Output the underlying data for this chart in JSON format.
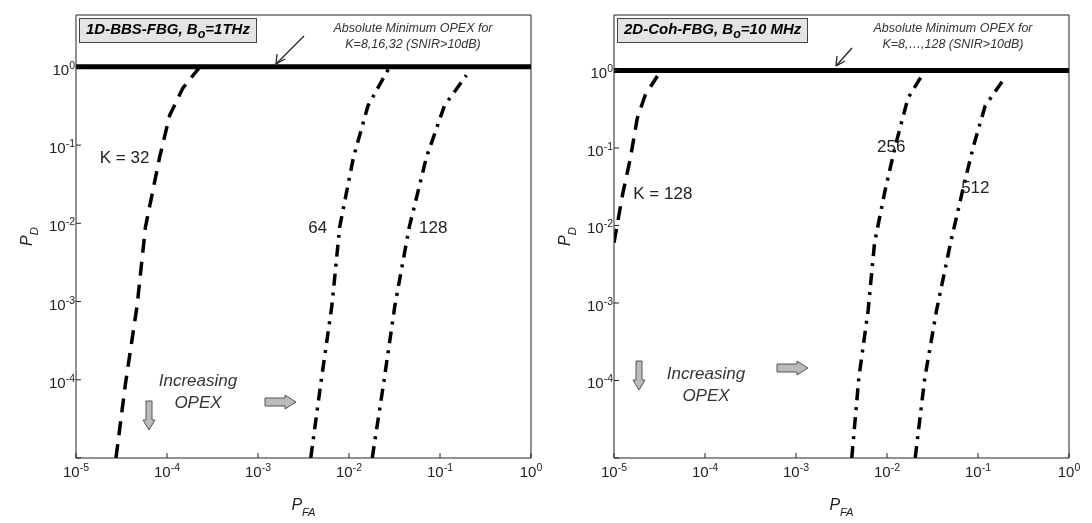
{
  "chart_data": [
    {
      "type": "line",
      "title": "1D-BBS-FBG, B$_{o}$=1THz",
      "xlabel": "P$_{FA}$",
      "ylabel": "P$_{D}$",
      "log": "xy",
      "marker": "none",
      "xlim": [
        1e-05,
        1
      ],
      "ylim": [
        1e-05,
        4.6
      ],
      "xticks": [
        {
          "value": 1e-05,
          "label": "10$^{-5}$"
        },
        {
          "value": 0.0001,
          "label": "10$^{-4}$"
        },
        {
          "value": 0.001,
          "label": "10$^{-3}$"
        },
        {
          "value": 0.01,
          "label": "10$^{-2}$"
        },
        {
          "value": 0.1,
          "label": "10$^{-1}$"
        },
        {
          "value": 1,
          "label": "10$^{0}$"
        }
      ],
      "yticks": [
        {
          "value": 1e-05,
          "label": null
        },
        {
          "value": 0.0001,
          "label": "10$^{-4}$"
        },
        {
          "value": 0.001,
          "label": "10$^{-3}$"
        },
        {
          "value": 0.01,
          "label": "10$^{-2}$"
        },
        {
          "value": 0.1,
          "label": "10$^{-1}$"
        },
        {
          "value": 1,
          "label": "10$^{0}$"
        }
      ],
      "series": [
        {
          "name": "K = 32",
          "color": "#000000",
          "line_style": "dashed",
          "x": [
            2.75e-05,
            3.5e-05,
            4.7e-05,
            5.8e-05,
            8.3e-05,
            0.000107,
            0.00015,
            0.00023
          ],
          "values": [
            1e-05,
            9e-05,
            0.0009,
            0.009,
            0.07,
            0.24,
            0.54,
            1
          ]
        },
        {
          "name": "64",
          "color": "#000000",
          "line_style": "dashdot",
          "x": [
            0.0038,
            0.0049,
            0.0065,
            0.0079,
            0.0112,
            0.0162,
            0.028
          ],
          "values": [
            1e-05,
            9e-05,
            0.0009,
            0.009,
            0.07,
            0.32,
            1
          ]
        },
        {
          "name": "128",
          "color": "#000000",
          "line_style": "dashdot",
          "x": [
            0.018,
            0.024,
            0.032,
            0.046,
            0.071,
            0.112,
            0.195
          ],
          "values": [
            1e-05,
            9e-05,
            0.0009,
            0.009,
            0.07,
            0.32,
            0.78
          ]
        }
      ],
      "ref_lines": [
        {
          "axis": "y",
          "value": 1,
          "color": "#000000",
          "line_style": "solid"
        }
      ],
      "annotations": [
        "Absolute Minimum OPEX for K=8,16,32 (SNIR>10dB)",
        "Increasing OPEX"
      ]
    },
    {
      "type": "line",
      "title": "2D-Coh-FBG, B$_{o}$=10 MHz",
      "xlabel": "P$_{FA}$",
      "ylabel": "P$_{D}$",
      "log": "xy",
      "marker": "none",
      "xlim": [
        1e-05,
        1
      ],
      "ylim": [
        1e-05,
        5.2
      ],
      "xticks": [
        {
          "value": 1e-05,
          "label": "10$^{-5}$"
        },
        {
          "value": 0.0001,
          "label": "10$^{-4}$"
        },
        {
          "value": 0.001,
          "label": "10$^{-3}$"
        },
        {
          "value": 0.01,
          "label": "10$^{-2}$"
        },
        {
          "value": 0.1,
          "label": "10$^{-1}$"
        },
        {
          "value": 1,
          "label": "10$^{0}$"
        }
      ],
      "yticks": [
        {
          "value": 1e-05,
          "label": null
        },
        {
          "value": 0.0001,
          "label": "10$^{-4}$"
        },
        {
          "value": 0.001,
          "label": "10$^{-3}$"
        },
        {
          "value": 0.01,
          "label": "10$^{-2}$"
        },
        {
          "value": 0.1,
          "label": "10$^{-1}$"
        },
        {
          "value": 1,
          "label": "10$^{0}$"
        }
      ],
      "series": [
        {
          "name": "K = 128",
          "color": "#000000",
          "line_style": "dashed",
          "x": [
            1e-05,
            1.25e-05,
            1.5e-05,
            1.8e-05,
            2.2e-05,
            3e-05
          ],
          "values": [
            0.006,
            0.026,
            0.07,
            0.24,
            0.48,
            0.85
          ]
        },
        {
          "name": "256",
          "color": "#000000",
          "line_style": "dashdot",
          "x": [
            0.0041,
            0.0049,
            0.0062,
            0.0073,
            0.0095,
            0.0123,
            0.017,
            0.024
          ],
          "values": [
            1e-05,
            0.000107,
            0.0008,
            0.006,
            0.028,
            0.105,
            0.44,
            0.85
          ]
        },
        {
          "name": "512",
          "color": "#000000",
          "line_style": "dashdot",
          "x": [
            0.0204,
            0.026,
            0.035,
            0.05,
            0.069,
            0.089,
            0.12,
            0.19
          ],
          "values": [
            1e-05,
            0.000107,
            0.0008,
            0.006,
            0.031,
            0.105,
            0.35,
            0.76
          ]
        }
      ],
      "ref_lines": [
        {
          "axis": "y",
          "value": 1,
          "color": "#000000",
          "line_style": "solid"
        }
      ],
      "annotations": [
        "Absolute Minimum OPEX for K=8,…,128 (SNIR>10dB)",
        "Increasing OPEX"
      ]
    }
  ]
}
